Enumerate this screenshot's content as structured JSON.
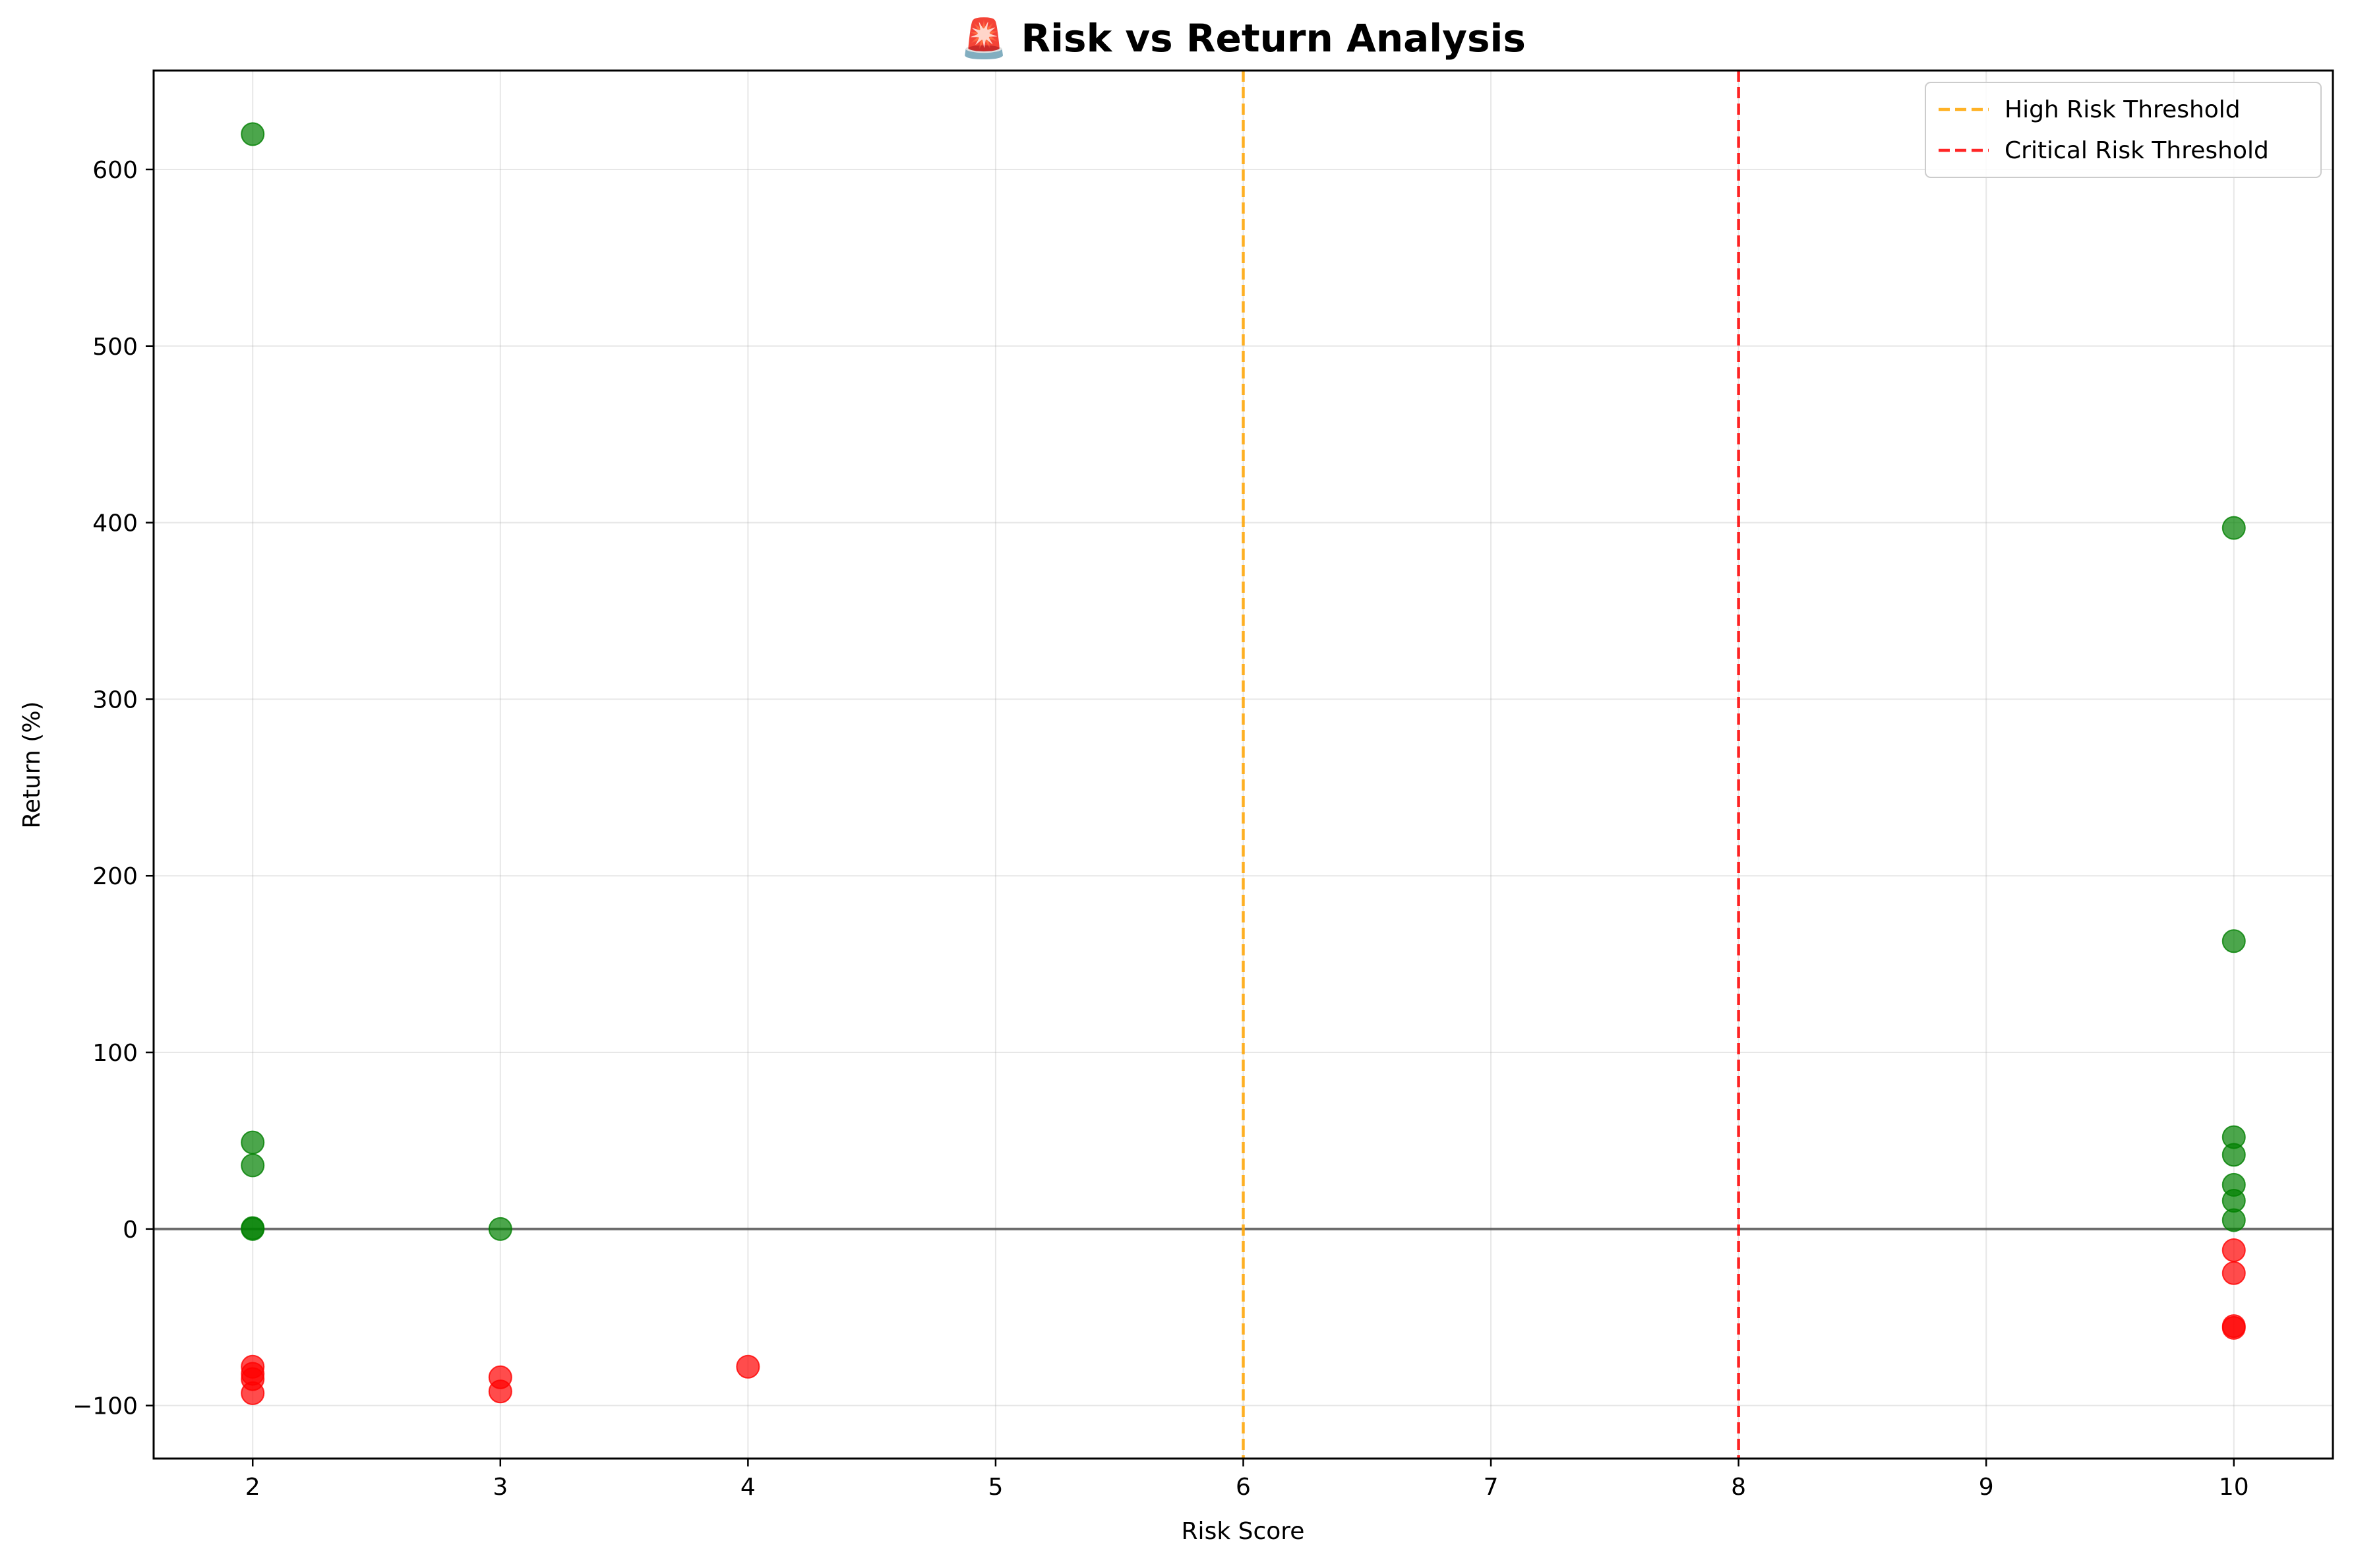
{
  "chart_data": {
    "type": "scatter",
    "title": "🚨 Risk vs Return Analysis",
    "xlabel": "Risk Score",
    "ylabel": "Return (%)",
    "xlim": [
      1.6,
      10.4
    ],
    "ylim": [
      -130,
      656
    ],
    "xticks": [
      2,
      3,
      4,
      5,
      6,
      7,
      8,
      9,
      10
    ],
    "yticks": [
      -100,
      0,
      100,
      200,
      300,
      400,
      500,
      600
    ],
    "grid": true,
    "legend_position": "top-right",
    "zero_line": {
      "y": 0,
      "color": "#555555"
    },
    "thresholds": [
      {
        "name": "High Risk Threshold",
        "x": 6,
        "color": "#FFA500",
        "style": "dashed"
      },
      {
        "name": "Critical Risk Threshold",
        "x": 8,
        "color": "#FF0000",
        "style": "dashed"
      }
    ],
    "series": [
      {
        "color": "#008000",
        "points": [
          {
            "x": 2,
            "y": 620
          },
          {
            "x": 2,
            "y": 49
          },
          {
            "x": 2,
            "y": 36
          },
          {
            "x": 2,
            "y": 0.5
          },
          {
            "x": 2,
            "y": 0
          },
          {
            "x": 3,
            "y": 0
          },
          {
            "x": 10,
            "y": 397
          },
          {
            "x": 10,
            "y": 163
          },
          {
            "x": 10,
            "y": 52
          },
          {
            "x": 10,
            "y": 42
          },
          {
            "x": 10,
            "y": 25
          },
          {
            "x": 10,
            "y": 16
          },
          {
            "x": 10,
            "y": 5
          }
        ]
      },
      {
        "color": "#FF0000",
        "points": [
          {
            "x": 2,
            "y": -78
          },
          {
            "x": 2,
            "y": -82
          },
          {
            "x": 2,
            "y": -85
          },
          {
            "x": 2,
            "y": -93
          },
          {
            "x": 3,
            "y": -84
          },
          {
            "x": 3,
            "y": -92
          },
          {
            "x": 4,
            "y": -78
          },
          {
            "x": 10,
            "y": -12
          },
          {
            "x": 10,
            "y": -25
          },
          {
            "x": 10,
            "y": -55
          },
          {
            "x": 10,
            "y": -56
          }
        ]
      }
    ]
  }
}
